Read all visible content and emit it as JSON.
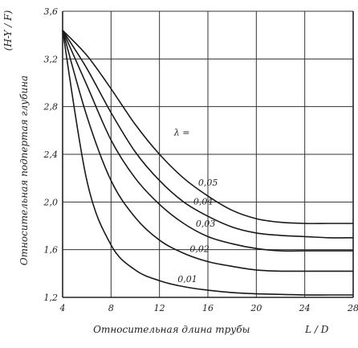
{
  "chart_data": {
    "type": "line",
    "ylabel": "Относительная подпертая глубина",
    "ylabel_formula": "(H-Y / F)",
    "xlabel": "Относительная длина трубы",
    "xlabel_formula": "L / D",
    "xlim": [
      4,
      28
    ],
    "ylim": [
      1.2,
      3.6
    ],
    "xticks": [
      "4",
      "8",
      "12",
      "16",
      "20",
      "24",
      "28"
    ],
    "yticks": [
      "1,2",
      "1,6",
      "2,0",
      "2,4",
      "2,8",
      "3,2",
      "3,6"
    ],
    "parameter_label": "λ =",
    "grid": true,
    "series": [
      {
        "name": "0,01",
        "x": [
          4,
          6,
          8,
          10,
          12,
          14,
          16,
          18,
          20,
          22,
          24,
          26,
          28
        ],
        "y": [
          3.44,
          2.18,
          1.64,
          1.43,
          1.34,
          1.29,
          1.26,
          1.24,
          1.23,
          1.225,
          1.22,
          1.22,
          1.22
        ]
      },
      {
        "name": "0,02",
        "x": [
          4,
          6,
          8,
          10,
          12,
          14,
          16,
          18,
          20,
          22,
          24,
          26,
          28
        ],
        "y": [
          3.44,
          2.72,
          2.18,
          1.87,
          1.68,
          1.57,
          1.5,
          1.46,
          1.43,
          1.42,
          1.42,
          1.42,
          1.42
        ]
      },
      {
        "name": "0,03",
        "x": [
          4,
          6,
          8,
          10,
          12,
          14,
          16,
          18,
          20,
          22,
          24,
          26,
          28
        ],
        "y": [
          3.44,
          2.98,
          2.52,
          2.2,
          1.98,
          1.82,
          1.71,
          1.65,
          1.61,
          1.59,
          1.59,
          1.59,
          1.59
        ]
      },
      {
        "name": "0,04",
        "x": [
          4,
          6,
          8,
          10,
          12,
          14,
          16,
          18,
          20,
          22,
          24,
          26,
          28
        ],
        "y": [
          3.44,
          3.12,
          2.75,
          2.42,
          2.18,
          2.0,
          1.88,
          1.79,
          1.74,
          1.72,
          1.71,
          1.7,
          1.7
        ]
      },
      {
        "name": "0,05",
        "x": [
          4,
          6,
          8,
          10,
          12,
          14,
          16,
          18,
          20,
          22,
          24,
          26,
          28
        ],
        "y": [
          3.44,
          3.23,
          2.95,
          2.65,
          2.4,
          2.2,
          2.05,
          1.93,
          1.86,
          1.83,
          1.82,
          1.82,
          1.82
        ]
      }
    ]
  }
}
